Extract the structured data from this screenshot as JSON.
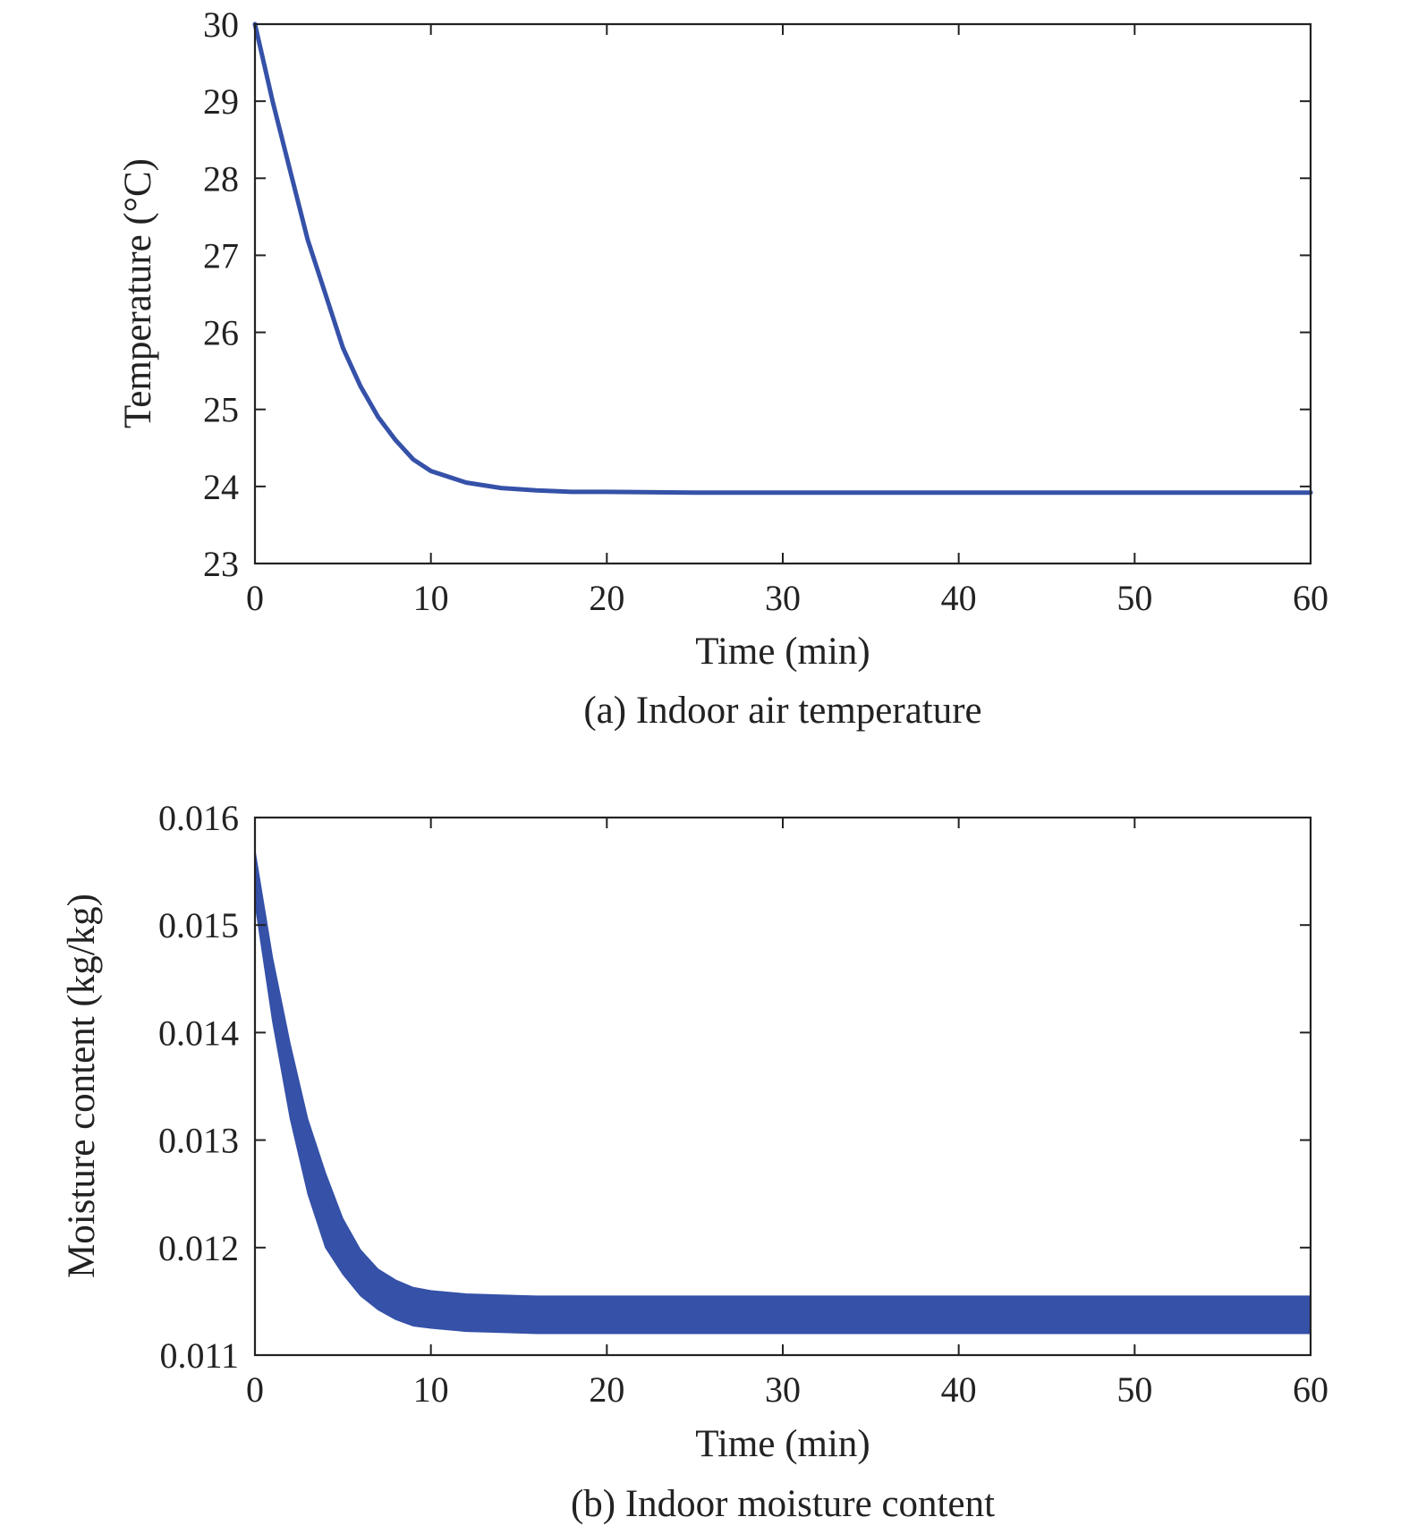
{
  "chart_data": [
    {
      "type": "line",
      "caption": "(a) Indoor air temperature",
      "xlabel": "Time (min)",
      "ylabel": "Temperature (°C)",
      "xlim": [
        0,
        60
      ],
      "ylim": [
        23,
        30
      ],
      "xticks": [
        0,
        10,
        20,
        30,
        40,
        50,
        60
      ],
      "yticks": [
        23,
        24,
        25,
        26,
        27,
        28,
        29,
        30
      ],
      "xtick_labels": [
        "0",
        "10",
        "20",
        "30",
        "40",
        "50",
        "60"
      ],
      "ytick_labels": [
        "23",
        "24",
        "25",
        "26",
        "27",
        "28",
        "29",
        "30"
      ],
      "grid": false,
      "color": "#3551a8",
      "series": [
        {
          "x": [
            0,
            1,
            2,
            3,
            4,
            5,
            6,
            7,
            8,
            9,
            10,
            12,
            14,
            16,
            18,
            20,
            25,
            30,
            35,
            40,
            45,
            50,
            55,
            60
          ],
          "values": [
            30,
            29.0,
            28.1,
            27.2,
            26.5,
            25.8,
            25.3,
            24.9,
            24.6,
            24.35,
            24.2,
            24.05,
            23.98,
            23.95,
            23.93,
            23.93,
            23.92,
            23.92,
            23.92,
            23.92,
            23.92,
            23.92,
            23.92,
            23.92
          ]
        }
      ]
    },
    {
      "type": "area",
      "caption": "(b) Indoor moisture content",
      "xlabel": "Time (min)",
      "ylabel": "Moisture content (kg/kg)",
      "xlim": [
        0,
        60
      ],
      "ylim": [
        0.011,
        0.016
      ],
      "xticks": [
        0,
        10,
        20,
        30,
        40,
        50,
        60
      ],
      "yticks": [
        0.011,
        0.012,
        0.013,
        0.014,
        0.015,
        0.016
      ],
      "xtick_labels": [
        "0",
        "10",
        "20",
        "30",
        "40",
        "50",
        "60"
      ],
      "ytick_labels": [
        "0.011",
        "0.012",
        "0.013",
        "0.014",
        "0.015",
        "0.016"
      ],
      "grid": false,
      "color": "#3551a8",
      "series": [
        {
          "x": [
            0,
            1,
            2,
            3,
            4,
            5,
            6,
            7,
            8,
            9,
            10,
            12,
            14,
            16,
            18,
            20,
            25,
            30,
            35,
            40,
            45,
            50,
            55,
            60
          ],
          "upper": [
            0.0157,
            0.0147,
            0.0139,
            0.0132,
            0.0127,
            0.01227,
            0.01198,
            0.0118,
            0.0117,
            0.01163,
            0.0116,
            0.01157,
            0.01156,
            0.01155,
            0.01155,
            0.01155,
            0.01155,
            0.01155,
            0.01155,
            0.01155,
            0.01155,
            0.01155,
            0.01155,
            0.01155
          ],
          "lower": [
            0.0152,
            0.0141,
            0.0132,
            0.0125,
            0.012,
            0.01175,
            0.01155,
            0.01142,
            0.01133,
            0.01127,
            0.01125,
            0.01122,
            0.01121,
            0.0112,
            0.0112,
            0.0112,
            0.0112,
            0.0112,
            0.0112,
            0.0112,
            0.0112,
            0.0112,
            0.0112,
            0.0112
          ]
        }
      ]
    }
  ]
}
